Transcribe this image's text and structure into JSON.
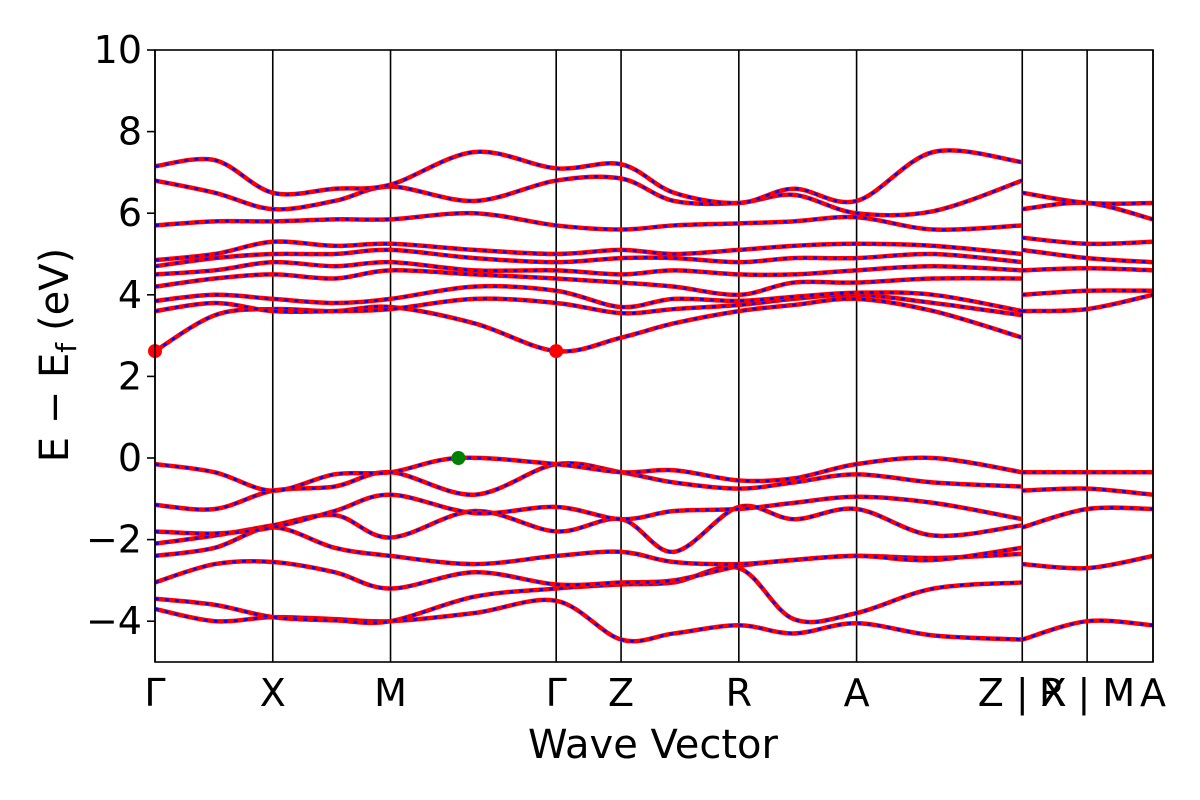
{
  "chart_data": {
    "type": "line",
    "xlabel": "Wave Vector",
    "ylabel": "E − E",
    "ylabel_sub": "f",
    "ylabel_unit": "(eV)",
    "ylim": [
      -5,
      10
    ],
    "yticks": [
      -4,
      -2,
      0,
      2,
      4,
      6,
      8,
      10
    ],
    "ytick_labels": [
      "−4",
      "−2",
      "0",
      "2",
      "4",
      "6",
      "8",
      "10"
    ],
    "x_range": [
      0,
      1
    ],
    "kpoints": [
      {
        "label": "Γ",
        "x": 0.0
      },
      {
        "label": "X",
        "x": 0.118
      },
      {
        "label": "M",
        "x": 0.236
      },
      {
        "label": "Γ",
        "x": 0.402
      },
      {
        "label": "Z",
        "x": 0.467
      },
      {
        "label": "R",
        "x": 0.585
      },
      {
        "label": "A",
        "x": 0.703
      },
      {
        "label": "Z | X",
        "x": 0.869
      },
      {
        "label": "R | M",
        "x": 0.934
      },
      {
        "label": "A",
        "x": 1.0
      }
    ],
    "colors": {
      "up": "#ff0000",
      "down": "#0000ff",
      "cbm": "#ff0000",
      "vbm": "#008000"
    },
    "band_styles": [
      "solid red",
      "dashed blue overlay"
    ],
    "extrema": [
      {
        "name": "CBM",
        "x": 0.0,
        "y": 2.62
      },
      {
        "name": "CBM",
        "x": 0.402,
        "y": 2.62
      },
      {
        "name": "VBM",
        "x": 0.304,
        "y": 0.0
      }
    ],
    "bands": [
      {
        "x": [
          0,
          0.06,
          0.118,
          0.18,
          0.236,
          0.32,
          0.402,
          0.467,
          0.52,
          0.585,
          0.64,
          0.703,
          0.78,
          0.869
        ],
        "y": [
          -3.7,
          -4.0,
          -3.9,
          -3.95,
          -4.0,
          -3.8,
          -3.5,
          -4.45,
          -4.3,
          -4.1,
          -4.3,
          -4.05,
          -4.35,
          -4.45
        ]
      },
      {
        "x": [
          0,
          0.06,
          0.118,
          0.18,
          0.236,
          0.32,
          0.402,
          0.467,
          0.52,
          0.585,
          0.64,
          0.703,
          0.78,
          0.869
        ],
        "y": [
          -3.45,
          -3.6,
          -3.9,
          -3.98,
          -4.0,
          -3.4,
          -3.2,
          -3.1,
          -3.05,
          -2.7,
          -3.95,
          -3.8,
          -3.2,
          -3.05
        ]
      },
      {
        "x": [
          0,
          0.06,
          0.118,
          0.18,
          0.236,
          0.32,
          0.402,
          0.467,
          0.52,
          0.585,
          0.64,
          0.703,
          0.78,
          0.869
        ],
        "y": [
          -3.05,
          -2.6,
          -2.55,
          -2.8,
          -3.2,
          -2.8,
          -3.1,
          -3.05,
          -3.0,
          -2.65,
          -2.5,
          -2.4,
          -2.45,
          -2.35
        ]
      },
      {
        "x": [
          0,
          0.06,
          0.118,
          0.18,
          0.236,
          0.32,
          0.402,
          0.467,
          0.52,
          0.585,
          0.64,
          0.703,
          0.78,
          0.869
        ],
        "y": [
          -2.4,
          -2.2,
          -1.7,
          -2.2,
          -2.4,
          -2.6,
          -2.4,
          -2.3,
          -2.55,
          -2.6,
          -2.5,
          -2.4,
          -2.5,
          -2.2
        ]
      },
      {
        "x": [
          0,
          0.06,
          0.118,
          0.18,
          0.236,
          0.32,
          0.402,
          0.467,
          0.52,
          0.585,
          0.64,
          0.703,
          0.78,
          0.869
        ],
        "y": [
          -2.1,
          -1.9,
          -1.65,
          -1.4,
          -1.95,
          -1.3,
          -1.8,
          -1.5,
          -2.3,
          -1.2,
          -1.5,
          -1.25,
          -1.9,
          -1.65
        ]
      },
      {
        "x": [
          0,
          0.06,
          0.118,
          0.18,
          0.236,
          0.32,
          0.402,
          0.467,
          0.52,
          0.585,
          0.64,
          0.703,
          0.78,
          0.869
        ],
        "y": [
          -1.8,
          -1.85,
          -1.7,
          -1.3,
          -0.9,
          -1.35,
          -1.2,
          -1.5,
          -1.3,
          -1.25,
          -1.1,
          -0.95,
          -1.1,
          -1.5
        ]
      },
      {
        "x": [
          0,
          0.06,
          0.118,
          0.18,
          0.236,
          0.32,
          0.402,
          0.467,
          0.52,
          0.585,
          0.64,
          0.703,
          0.78,
          0.869
        ],
        "y": [
          -1.15,
          -1.25,
          -0.8,
          -0.7,
          -0.35,
          -0.9,
          -0.15,
          -0.35,
          -0.6,
          -0.75,
          -0.6,
          -0.4,
          -0.6,
          -0.7
        ]
      },
      {
        "x": [
          0,
          0.06,
          0.118,
          0.18,
          0.236,
          0.304,
          0.402,
          0.467,
          0.52,
          0.585,
          0.64,
          0.703,
          0.78,
          0.869
        ],
        "y": [
          -0.15,
          -0.35,
          -0.8,
          -0.4,
          -0.35,
          0.0,
          -0.15,
          -0.35,
          -0.3,
          -0.55,
          -0.5,
          -0.15,
          0.0,
          -0.35
        ]
      },
      {
        "x": [
          0,
          0.06,
          0.118,
          0.18,
          0.236,
          0.32,
          0.402,
          0.467,
          0.52,
          0.585,
          0.64,
          0.703,
          0.78,
          0.869
        ],
        "y": [
          2.62,
          3.5,
          3.65,
          3.6,
          3.7,
          3.3,
          2.62,
          2.95,
          3.3,
          3.6,
          3.75,
          3.9,
          3.6,
          2.95
        ]
      },
      {
        "x": [
          0,
          0.06,
          0.118,
          0.18,
          0.236,
          0.32,
          0.402,
          0.467,
          0.52,
          0.585,
          0.64,
          0.703,
          0.78,
          0.869
        ],
        "y": [
          3.6,
          3.8,
          3.6,
          3.6,
          3.65,
          3.9,
          3.8,
          3.55,
          3.65,
          3.75,
          3.9,
          4.0,
          3.8,
          3.5
        ]
      },
      {
        "x": [
          0,
          0.06,
          0.118,
          0.18,
          0.236,
          0.32,
          0.402,
          0.467,
          0.52,
          0.585,
          0.64,
          0.703,
          0.78,
          0.869
        ],
        "y": [
          3.85,
          4.0,
          3.9,
          3.8,
          3.9,
          4.2,
          4.1,
          3.7,
          3.9,
          3.85,
          3.95,
          4.05,
          4.0,
          3.6
        ]
      },
      {
        "x": [
          0,
          0.06,
          0.118,
          0.18,
          0.236,
          0.32,
          0.402,
          0.467,
          0.52,
          0.585,
          0.64,
          0.703,
          0.78,
          0.869
        ],
        "y": [
          4.2,
          4.4,
          4.5,
          4.4,
          4.6,
          4.5,
          4.4,
          4.3,
          4.2,
          4.0,
          4.3,
          4.3,
          4.4,
          4.4
        ]
      },
      {
        "x": [
          0,
          0.06,
          0.118,
          0.18,
          0.236,
          0.32,
          0.402,
          0.467,
          0.52,
          0.585,
          0.64,
          0.703,
          0.78,
          0.869
        ],
        "y": [
          4.5,
          4.6,
          4.8,
          4.7,
          4.8,
          4.6,
          4.6,
          4.5,
          4.6,
          4.5,
          4.5,
          4.6,
          4.7,
          4.6
        ]
      },
      {
        "x": [
          0,
          0.06,
          0.118,
          0.18,
          0.236,
          0.32,
          0.402,
          0.467,
          0.52,
          0.585,
          0.64,
          0.703,
          0.78,
          0.869
        ],
        "y": [
          4.7,
          4.9,
          5.0,
          5.0,
          5.1,
          4.9,
          4.8,
          4.9,
          4.9,
          4.8,
          4.9,
          4.9,
          5.0,
          4.8
        ]
      },
      {
        "x": [
          0,
          0.06,
          0.118,
          0.18,
          0.236,
          0.32,
          0.402,
          0.467,
          0.52,
          0.585,
          0.64,
          0.703,
          0.78,
          0.869
        ],
        "y": [
          4.85,
          5.0,
          5.3,
          5.2,
          5.25,
          5.1,
          5.0,
          5.1,
          5.0,
          5.1,
          5.2,
          5.25,
          5.2,
          5.0
        ]
      },
      {
        "x": [
          0,
          0.06,
          0.118,
          0.18,
          0.236,
          0.32,
          0.402,
          0.467,
          0.52,
          0.585,
          0.64,
          0.703,
          0.78,
          0.869
        ],
        "y": [
          5.7,
          5.8,
          5.8,
          5.85,
          5.85,
          6.0,
          5.7,
          5.6,
          5.7,
          5.75,
          5.8,
          5.9,
          5.6,
          5.7
        ]
      },
      {
        "x": [
          0,
          0.06,
          0.118,
          0.18,
          0.236,
          0.32,
          0.402,
          0.467,
          0.52,
          0.585,
          0.64,
          0.703,
          0.78,
          0.869
        ],
        "y": [
          6.8,
          6.5,
          6.1,
          6.3,
          6.65,
          6.3,
          6.8,
          6.85,
          6.3,
          6.25,
          6.45,
          6.0,
          6.05,
          6.8
        ]
      },
      {
        "x": [
          0,
          0.06,
          0.118,
          0.18,
          0.236,
          0.32,
          0.402,
          0.467,
          0.52,
          0.585,
          0.64,
          0.703,
          0.78,
          0.869
        ],
        "y": [
          7.15,
          7.3,
          6.5,
          6.6,
          6.7,
          7.5,
          7.1,
          7.2,
          6.5,
          6.25,
          6.6,
          6.3,
          7.5,
          7.25
        ]
      },
      {
        "x": [
          0.869,
          0.934,
          1.0
        ],
        "y": [
          -4.45,
          -4.0,
          -4.1
        ]
      },
      {
        "x": [
          0.869,
          0.934,
          1.0
        ],
        "y": [
          -2.6,
          -2.7,
          -2.4
        ]
      },
      {
        "x": [
          0.869,
          0.934,
          1.0
        ],
        "y": [
          -1.7,
          -1.25,
          -1.25
        ]
      },
      {
        "x": [
          0.869,
          0.934,
          1.0
        ],
        "y": [
          -0.8,
          -0.75,
          -0.9
        ]
      },
      {
        "x": [
          0.869,
          0.934,
          1.0
        ],
        "y": [
          -0.35,
          -0.35,
          -0.35
        ]
      },
      {
        "x": [
          0.869,
          0.934,
          1.0
        ],
        "y": [
          3.6,
          3.65,
          4.0
        ]
      },
      {
        "x": [
          0.869,
          0.934,
          1.0
        ],
        "y": [
          4.0,
          4.1,
          4.1
        ]
      },
      {
        "x": [
          0.869,
          0.934,
          1.0
        ],
        "y": [
          4.6,
          4.65,
          4.6
        ]
      },
      {
        "x": [
          0.869,
          0.934,
          1.0
        ],
        "y": [
          5.1,
          4.9,
          4.8
        ]
      },
      {
        "x": [
          0.869,
          0.934,
          1.0
        ],
        "y": [
          5.4,
          5.25,
          5.3
        ]
      },
      {
        "x": [
          0.869,
          0.934,
          1.0
        ],
        "y": [
          6.1,
          6.25,
          5.85
        ]
      },
      {
        "x": [
          0.869,
          0.934,
          1.0
        ],
        "y": [
          6.5,
          6.25,
          6.25
        ]
      }
    ]
  }
}
